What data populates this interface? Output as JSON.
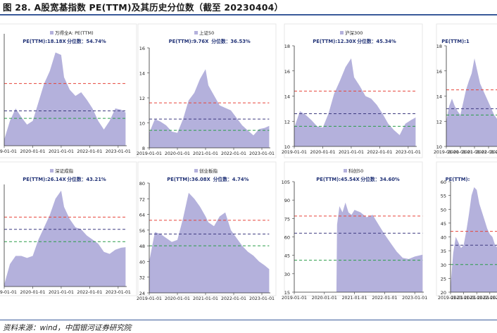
{
  "figure_title": "图 28. A股宽基指数 PE(TTM)及其历史分位数（截至 20230404）",
  "source": "资料来源：wind，中国银河证券研究院",
  "colors": {
    "area": "#b4b1dc",
    "high": "#e6443a",
    "mid": "#3d3a80",
    "low": "#2a9d48",
    "axis": "#333333"
  },
  "chart_data": [
    {
      "type": "area",
      "title": "万得全A: PE(TTM)",
      "legend": "万得全A: PE(TTM)",
      "annotation_pe": "PE(TTM):18.18X",
      "annotation_pct": "分位数：54.74%",
      "ylim": [
        null,
        null
      ],
      "yticks": [],
      "xticks": [
        "2019-01-01",
        "2020-01-01",
        "2021-01-01",
        "2022-01-01",
        "2023-01-01"
      ],
      "xrange": [
        0,
        4.3
      ],
      "lines": {
        "high": 20.5,
        "mid": 18.3,
        "low": 17.7
      },
      "x": [
        0,
        0.2,
        0.4,
        0.6,
        0.8,
        1.0,
        1.2,
        1.4,
        1.6,
        1.8,
        2.0,
        2.1,
        2.3,
        2.5,
        2.7,
        2.9,
        3.1,
        3.3,
        3.5,
        3.7,
        3.9,
        4.1,
        4.26
      ],
      "y": [
        16,
        17.5,
        18.5,
        17.8,
        17.2,
        17.5,
        19,
        20.5,
        21.5,
        23,
        22.8,
        21,
        20,
        19.5,
        19.8,
        19.2,
        18.5,
        17.5,
        16.8,
        17.5,
        18.5,
        18.4,
        18.18
      ]
    },
    {
      "type": "area",
      "title": "上证50",
      "legend": "上证50",
      "annotation_pe": "PE(TTM):9.76X",
      "annotation_pct": "分位数：36.53%",
      "ylim": [
        8,
        16
      ],
      "yticks": [
        "8",
        "10",
        "12",
        "14",
        "16"
      ],
      "xticks": [
        "2019-01-01",
        "2020-01-01",
        "2021-01-01",
        "2022-01-01",
        "2023-01-01"
      ],
      "xrange": [
        0,
        4.3
      ],
      "lines": {
        "high": 11.6,
        "mid": 10.3,
        "low": 9.4
      },
      "x": [
        0,
        0.2,
        0.4,
        0.6,
        0.8,
        1.0,
        1.2,
        1.4,
        1.6,
        1.8,
        2.0,
        2.1,
        2.3,
        2.5,
        2.7,
        2.9,
        3.1,
        3.3,
        3.5,
        3.7,
        3.9,
        4.1,
        4.26
      ],
      "y": [
        9.2,
        10.3,
        10.1,
        9.8,
        9.3,
        9.2,
        10.3,
        11.8,
        12.4,
        13.5,
        14.3,
        13.0,
        12.2,
        11.4,
        11.2,
        11.0,
        10.4,
        9.8,
        9.4,
        9.0,
        9.5,
        9.6,
        9.76
      ]
    },
    {
      "type": "area",
      "title": "沪深300",
      "legend": "沪深300",
      "annotation_pe": "PE(TTM):12.30X",
      "annotation_pct": "分位数：45.34%",
      "ylim": [
        10,
        18
      ],
      "yticks": [
        "10",
        "12",
        "14",
        "16",
        "18"
      ],
      "xticks": [
        "2019-01-01",
        "2020-01-01",
        "2021-01-01",
        "2022-01-01",
        "2023-01-01"
      ],
      "xrange": [
        0,
        4.3
      ],
      "lines": {
        "high": 14.4,
        "mid": 12.6,
        "low": 11.6
      },
      "x": [
        0,
        0.2,
        0.4,
        0.6,
        0.8,
        1.0,
        1.2,
        1.4,
        1.6,
        1.8,
        2.0,
        2.1,
        2.3,
        2.5,
        2.7,
        2.9,
        3.1,
        3.3,
        3.5,
        3.7,
        3.9,
        4.1,
        4.26
      ],
      "y": [
        11.5,
        12.8,
        12.5,
        12.1,
        11.6,
        11.5,
        12.6,
        14.2,
        15.2,
        16.3,
        17.0,
        15.5,
        14.8,
        14.0,
        13.8,
        13.3,
        12.6,
        11.8,
        11.3,
        10.9,
        11.8,
        12.1,
        12.3
      ]
    },
    {
      "type": "area",
      "title": "",
      "legend": "",
      "annotation_pe": "PE(TTM):1",
      "annotation_pct": "",
      "ylim": [
        10,
        18
      ],
      "yticks": [
        "10",
        "12",
        "14",
        "16",
        "18"
      ],
      "xticks": [
        "2019-01-01",
        "2020-01-01",
        "2021-01-01",
        "2022-01-01",
        "2023-01-01"
      ],
      "xrange": [
        0,
        4.3
      ],
      "lines": {
        "high": 14.5,
        "mid": 13.0,
        "low": 12.5
      },
      "x": [
        0,
        0.2,
        0.4,
        0.6,
        0.8,
        1.0,
        1.2,
        1.4,
        1.6,
        1.8,
        2.0,
        2.2,
        2.4,
        2.6,
        2.8,
        3.0,
        3.2,
        3.4,
        3.6,
        3.8,
        4.0,
        4.2
      ],
      "y": [
        12,
        13.2,
        13.8,
        13.2,
        12.8,
        12.5,
        13.5,
        14.5,
        15.2,
        15.8,
        17,
        16,
        15,
        14.5,
        14,
        13.5,
        13,
        12.5,
        12.2,
        12.6,
        13,
        13.1
      ]
    },
    {
      "type": "area",
      "title": "深证成指",
      "legend": "深证成指",
      "annotation_pe": "PE(TTM):26.14X",
      "annotation_pct": "分位数：43.21%",
      "ylim": [
        null,
        null
      ],
      "yticks": [],
      "xticks": [
        "2019-01-01",
        "2020-01-01",
        "2021-01-01",
        "2022-01-01",
        "2023-01-01"
      ],
      "xrange": [
        0,
        4.3
      ],
      "lines": {
        "high": 33.5,
        "mid": 30.5,
        "low": 27.5
      },
      "x": [
        0,
        0.2,
        0.4,
        0.6,
        0.8,
        1.0,
        1.2,
        1.4,
        1.6,
        1.8,
        2.0,
        2.1,
        2.3,
        2.5,
        2.7,
        2.9,
        3.1,
        3.3,
        3.5,
        3.7,
        3.9,
        4.1,
        4.26
      ],
      "y": [
        17,
        22,
        24,
        24,
        23.5,
        24,
        28,
        31,
        34,
        38,
        40,
        36,
        33,
        31,
        30.5,
        29,
        28,
        27,
        25,
        24.5,
        25.5,
        26,
        26.14
      ]
    },
    {
      "type": "area",
      "title": "创业板指",
      "legend": "创业板指",
      "annotation_pe": "PE(TTM):36.08X",
      "annotation_pct": "分位数：4.74%",
      "ylim": [
        24,
        80
      ],
      "yticks": [
        "24",
        "32",
        "40",
        "48",
        "56",
        "64",
        "72",
        "80"
      ],
      "xticks": [
        "2019-01-01",
        "2020-01-01",
        "2021-01-01",
        "2022-01-01",
        "2023-01-01"
      ],
      "xrange": [
        0,
        4.3
      ],
      "lines": {
        "high": 61,
        "mid": 54,
        "low": 48
      },
      "x": [
        0,
        0.2,
        0.4,
        0.6,
        0.8,
        1.0,
        1.2,
        1.4,
        1.6,
        1.8,
        2.0,
        2.1,
        2.3,
        2.5,
        2.7,
        2.9,
        3.1,
        3.3,
        3.5,
        3.7,
        3.9,
        4.1,
        4.26
      ],
      "y": [
        40,
        55,
        54,
        52,
        50,
        51,
        62,
        75,
        72,
        68,
        63,
        60,
        58,
        63,
        65,
        56,
        52,
        48,
        45,
        43,
        40,
        38,
        36.08
      ]
    },
    {
      "type": "area",
      "title": "科创50",
      "legend": "科创50",
      "annotation_pe": "PE(TTM):45.54X",
      "annotation_pct": "分位数：34.60%",
      "ylim": [
        15,
        105
      ],
      "yticks": [
        "15",
        "30",
        "45",
        "60",
        "75",
        "90",
        "105"
      ],
      "xticks": [
        "2019-01-01",
        "2020-01-01",
        "2021-01-01",
        "2022-01-01",
        "2023-01-01"
      ],
      "xrange": [
        0,
        4.3
      ],
      "lines": {
        "high": 77,
        "mid": 63,
        "low": 41
      },
      "x": [
        1.4,
        1.42,
        1.5,
        1.6,
        1.7,
        1.8,
        1.9,
        2.0,
        2.2,
        2.4,
        2.6,
        2.8,
        3.0,
        3.2,
        3.4,
        3.6,
        3.8,
        4.0,
        4.26
      ],
      "y": [
        15,
        70,
        85,
        80,
        88,
        80,
        78,
        82,
        80,
        76,
        78,
        70,
        62,
        55,
        48,
        43,
        42,
        44,
        45.54
      ]
    },
    {
      "type": "area",
      "title": "",
      "legend": "",
      "annotation_pe": "PE(TTM):",
      "annotation_pct": "",
      "ylim": [
        20,
        60
      ],
      "yticks": [
        "20",
        "25",
        "30",
        "35",
        "40",
        "45",
        "50",
        "55",
        "60"
      ],
      "xticks": [
        "2019-01-01",
        "2020-01-01",
        "2021-01-01",
        "2022-01-01",
        "2023-01-01"
      ],
      "xrange": [
        0,
        4.3
      ],
      "lines": {
        "high": 42,
        "mid": 37,
        "low": 30
      },
      "x": [
        0,
        0.2,
        0.4,
        0.6,
        0.8,
        1.0,
        1.2,
        1.4,
        1.6,
        1.8,
        2.0,
        2.2,
        2.4,
        2.6,
        2.8,
        3.0,
        3.2,
        3.4,
        3.6,
        3.8,
        4.0,
        4.2
      ],
      "y": [
        22,
        34,
        40,
        38,
        36,
        37,
        42,
        48,
        55,
        58,
        57,
        52,
        49,
        46,
        43,
        41,
        40,
        37,
        36,
        37,
        38,
        38
      ]
    }
  ]
}
